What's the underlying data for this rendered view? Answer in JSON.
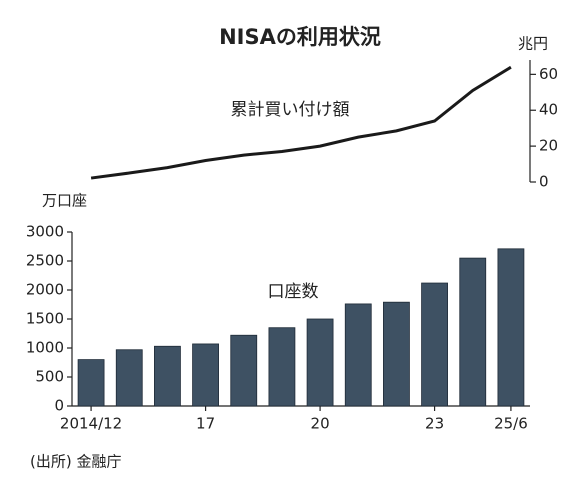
{
  "chart_data": {
    "type": "bar",
    "title": "NISAの利用状況",
    "ylabel": "万口座",
    "y2label": "兆円",
    "source": "(出所) 金融庁",
    "categories": [
      "2014/12",
      null,
      null,
      "17",
      null,
      null,
      "20",
      null,
      null,
      "23",
      null,
      "25/6"
    ],
    "series": [
      {
        "name": "口座数",
        "type": "bar",
        "color": "#3e5163",
        "values": [
          800,
          970,
          1030,
          1070,
          1220,
          1350,
          1500,
          1760,
          1790,
          2120,
          2550,
          2710
        ]
      },
      {
        "name": "累計買い付け額",
        "type": "line",
        "axis": "y2",
        "color": "#1a1a1a",
        "values": [
          2.2,
          5,
          8,
          12,
          15,
          17,
          20,
          25,
          28.5,
          34,
          51,
          64
        ]
      }
    ],
    "ylim": [
      0,
      3000
    ],
    "yticks": [
      0,
      500,
      1000,
      1500,
      2000,
      2500,
      3000
    ],
    "y2lim": [
      0,
      68
    ],
    "y2ticks": [
      0,
      20,
      40,
      60
    ]
  }
}
